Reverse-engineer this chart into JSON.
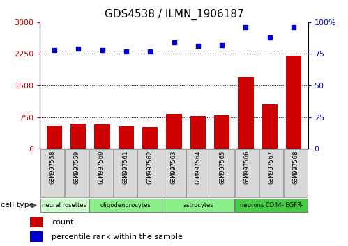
{
  "title": "GDS4538 / ILMN_1906187",
  "samples": [
    "GSM997558",
    "GSM997559",
    "GSM997560",
    "GSM997561",
    "GSM997562",
    "GSM997563",
    "GSM997564",
    "GSM997565",
    "GSM997566",
    "GSM997567",
    "GSM997568"
  ],
  "counts": [
    550,
    590,
    580,
    530,
    510,
    820,
    770,
    790,
    1700,
    1050,
    2200
  ],
  "percentiles": [
    78,
    79,
    78,
    77,
    77,
    84,
    81,
    82,
    96,
    88,
    96
  ],
  "bar_color": "#cc0000",
  "dot_color": "#0000cc",
  "left_ylim": [
    0,
    3000
  ],
  "right_ylim": [
    0,
    100
  ],
  "left_yticks": [
    0,
    750,
    1500,
    2250,
    3000
  ],
  "right_yticks": [
    0,
    25,
    50,
    75,
    100
  ],
  "grid_values": [
    750,
    1500,
    2250
  ],
  "axis_color_left": "#cc0000",
  "axis_color_right": "#0000cc",
  "sample_box_color": "#d8d8d8",
  "ct_groups": [
    {
      "label": "neural rosettes",
      "indices": [
        0,
        1
      ],
      "color": "#ccffcc"
    },
    {
      "label": "oligodendrocytes",
      "indices": [
        2,
        3,
        4
      ],
      "color": "#88ee88"
    },
    {
      "label": "astrocytes",
      "indices": [
        5,
        6,
        7
      ],
      "color": "#88ee88"
    },
    {
      "label": "neurons CD44- EGFR-",
      "indices": [
        8,
        9,
        10
      ],
      "color": "#44cc44"
    }
  ]
}
